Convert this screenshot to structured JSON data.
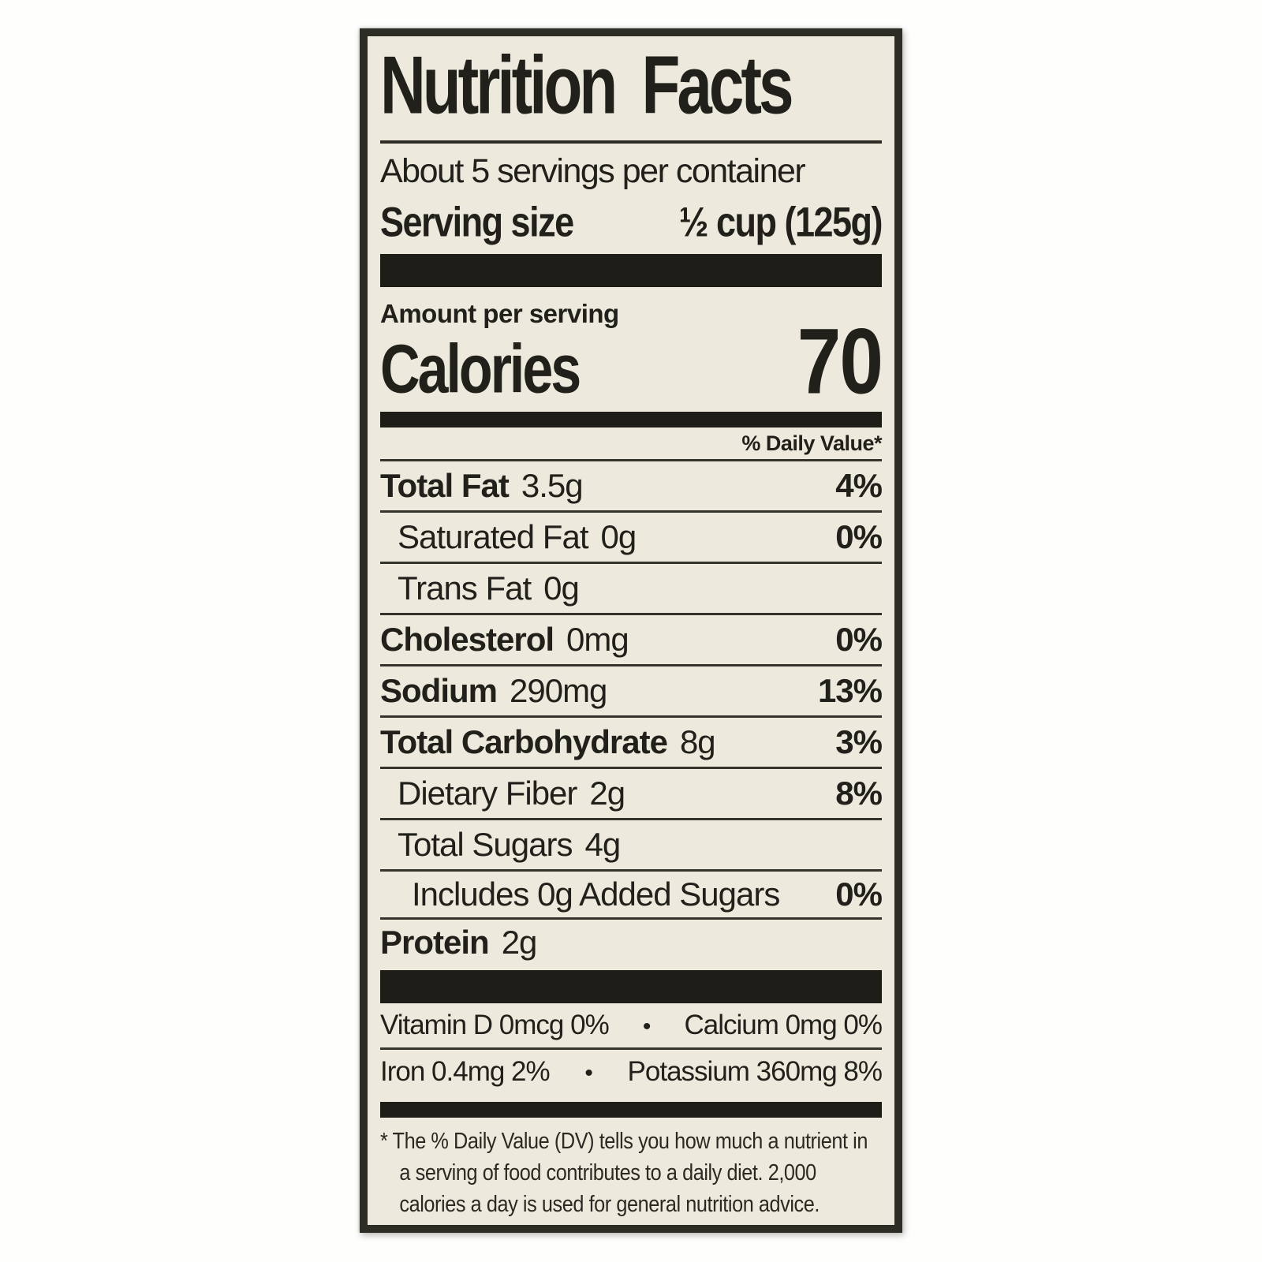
{
  "label": {
    "title": "Nutrition Facts",
    "servings_per_container": "About 5 servings per container",
    "serving_size_label": "Serving size",
    "serving_size_value": "½ cup (125g)",
    "amount_per_serving": "Amount per serving",
    "calories_label": "Calories",
    "calories_value": "70",
    "daily_value_header": "% Daily Value*",
    "rows": [
      {
        "name": "Total Fat",
        "amount": "3.5g",
        "dv": "4%"
      },
      {
        "name": "Saturated Fat",
        "amount": "0g",
        "dv": "0%"
      },
      {
        "name": "Trans Fat",
        "amount": "0g",
        "dv": ""
      },
      {
        "name": "Cholesterol",
        "amount": "0mg",
        "dv": "0%"
      },
      {
        "name": "Sodium",
        "amount": "290mg",
        "dv": "13%"
      },
      {
        "name": "Total Carbohydrate",
        "amount": "8g",
        "dv": "3%"
      },
      {
        "name": "Dietary Fiber",
        "amount": "2g",
        "dv": "8%"
      },
      {
        "name": "Total Sugars",
        "amount": "4g",
        "dv": ""
      },
      {
        "name": "Includes 0g Added Sugars",
        "amount": "",
        "dv": "0%"
      },
      {
        "name": "Protein",
        "amount": "2g",
        "dv": ""
      }
    ],
    "micronutrients": [
      {
        "left": "Vitamin D 0mcg 0%",
        "separator": "•",
        "right": "Calcium 0mg 0%"
      },
      {
        "left": "Iron 0.4mg 2%",
        "separator": "•",
        "right": "Potassium 360mg 8%"
      }
    ],
    "footnote_marker": "*",
    "footnote": "The % Daily Value (DV) tells you how much a nutrient in a serving of food contributes to a daily diet. 2,000 calories a day is used for general nutrition advice."
  },
  "colors": {
    "page_background": "#fefefd",
    "label_background": "#edeadd",
    "border": "#2e2d25",
    "bar": "#1e1d17",
    "text": "#21201b"
  }
}
